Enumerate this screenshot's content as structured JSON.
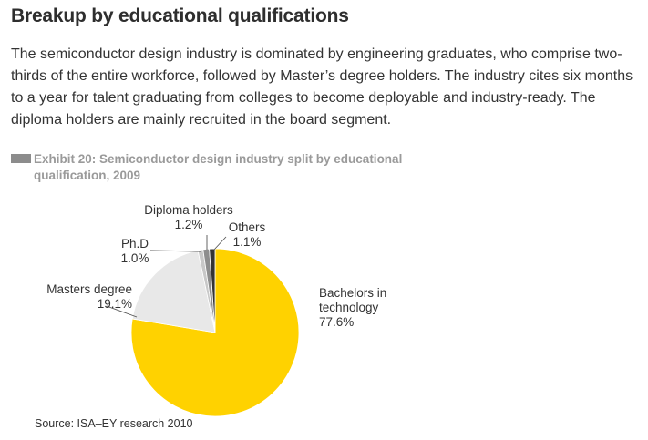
{
  "title": "Breakup by educational qualifications",
  "body_text": "The semiconductor design industry is dominated by engineering graduates, who comprise two-thirds of the entire workforce, followed by Master’s degree holders. The industry cites six months to a year for talent graduating from colleges to become deployable and industry-ready. The diploma holders are mainly recruited in the board segment.",
  "exhibit": {
    "line1": "Exhibit 20: Semiconductor design industry split by educational",
    "line2": "qualification, 2009"
  },
  "source": "Source: ISA–EY research 2010",
  "chart_data": {
    "type": "pie",
    "slices": [
      {
        "label_lines": [
          "Bachelors in",
          "technology"
        ],
        "value_text": "77.6%",
        "value": 77.6,
        "color": "#ffd200"
      },
      {
        "label_lines": [
          "Masters degree"
        ],
        "value_text": "19.1%",
        "value": 19.1,
        "color": "#e8e8e8"
      },
      {
        "label_lines": [
          "Ph.D"
        ],
        "value_text": "1.0%",
        "value": 1.0,
        "color": "#c8c8c8"
      },
      {
        "label_lines": [
          "Diploma holders"
        ],
        "value_text": "1.2%",
        "value": 1.2,
        "color": "#8e8e8e"
      },
      {
        "label_lines": [
          "Others"
        ],
        "value_text": "1.1%",
        "value": 1.1,
        "color": "#333333"
      }
    ]
  }
}
